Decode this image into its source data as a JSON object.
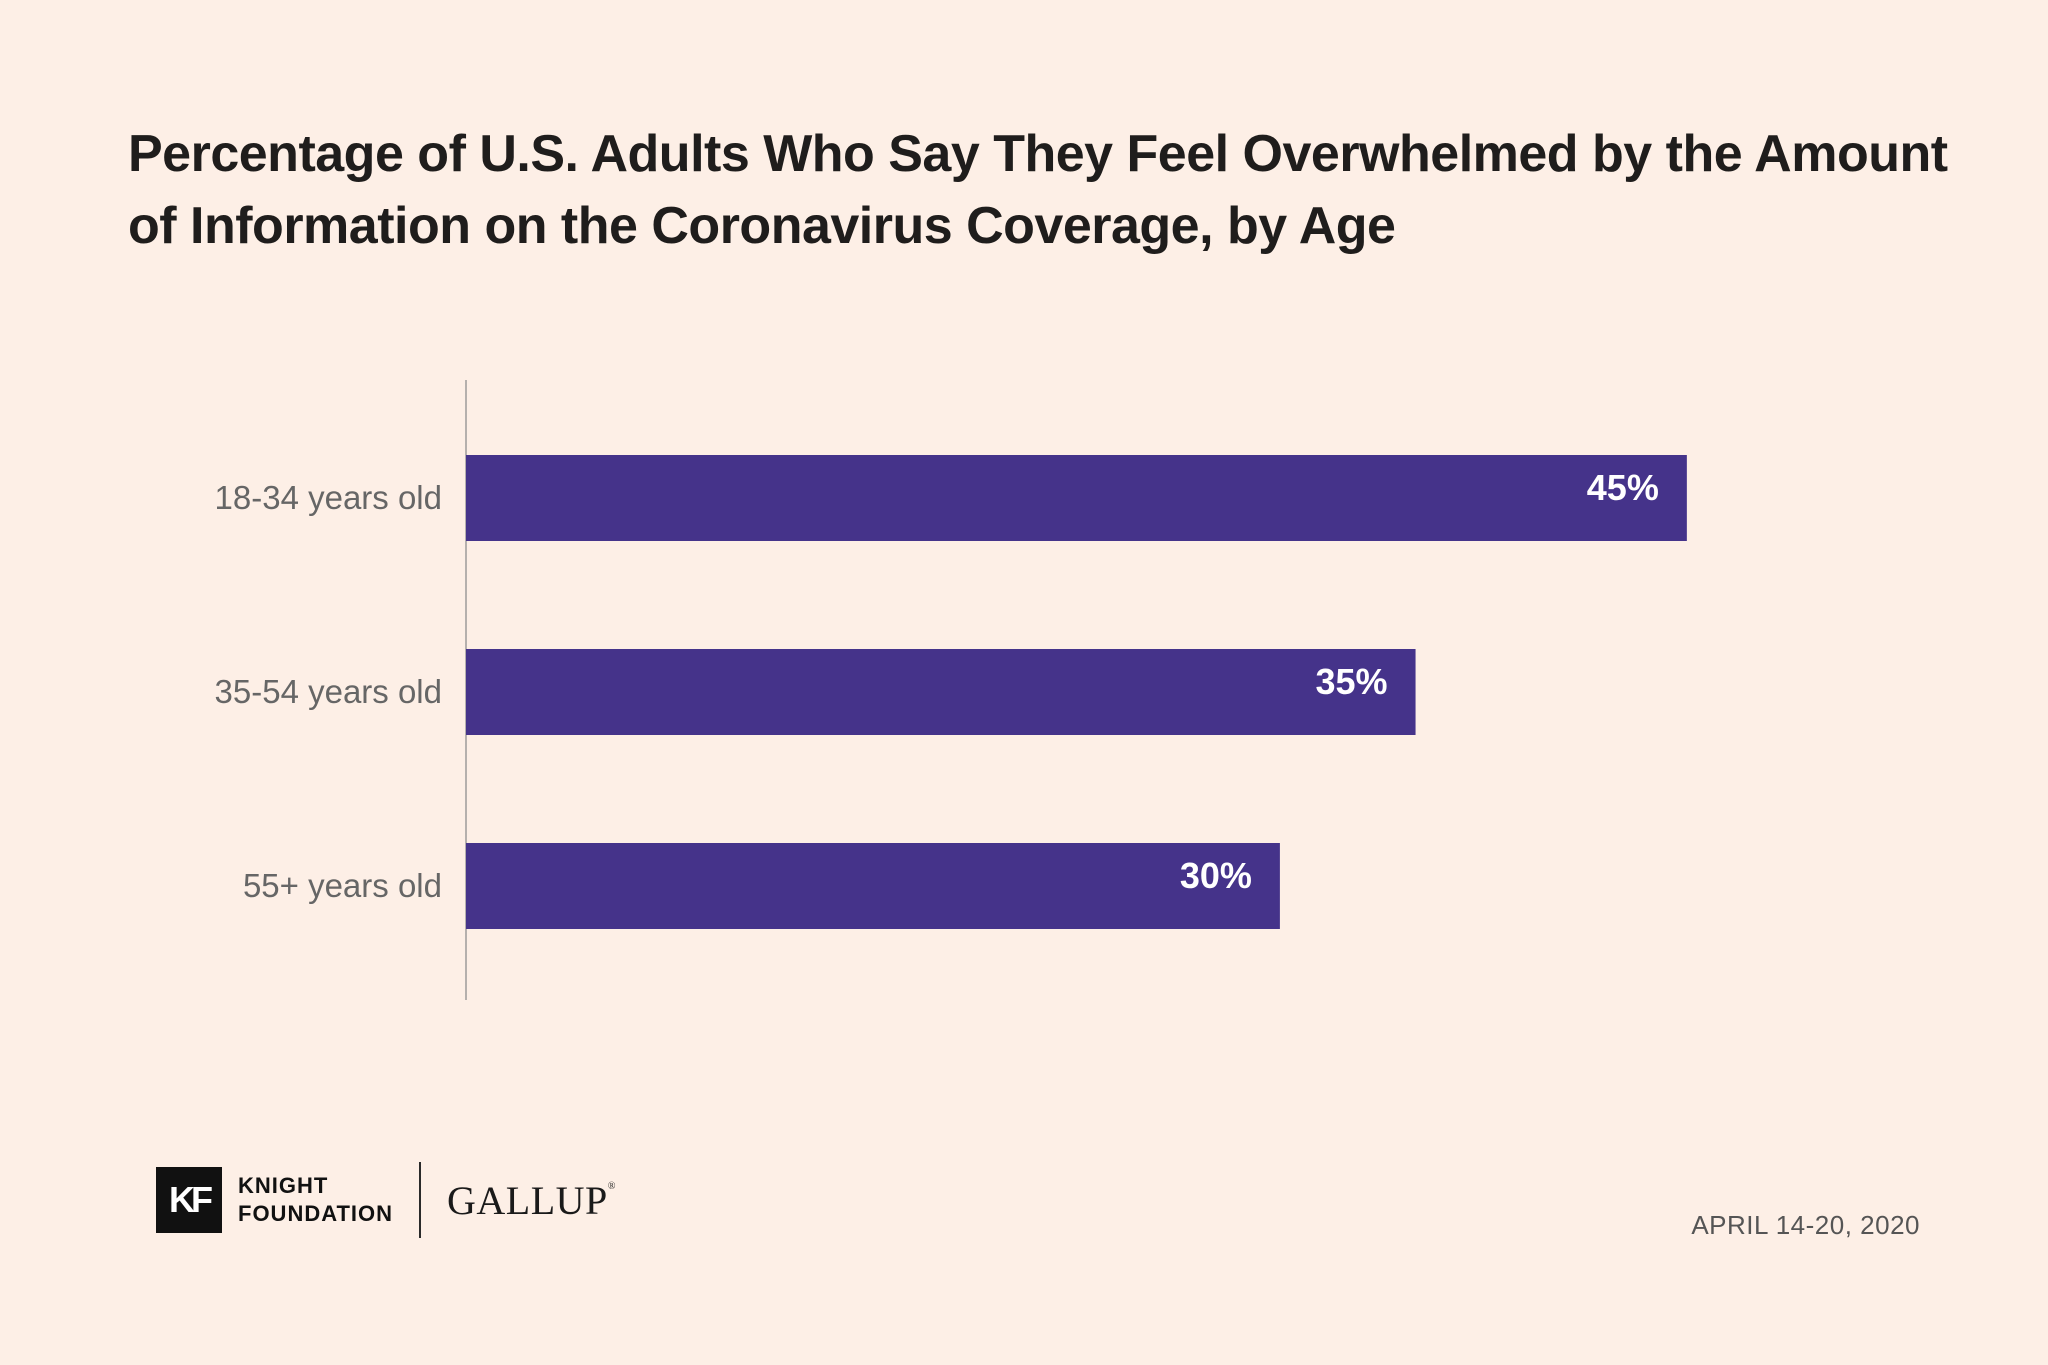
{
  "chart_data": {
    "type": "bar",
    "orientation": "horizontal",
    "title": "Percentage of U.S. Adults Who Say They Feel Overwhelmed by the Amount of Information on the Coronavirus Coverage, by Age",
    "categories": [
      "18-34 years old",
      "35-54 years old",
      "55+ years old"
    ],
    "values": [
      45,
      35,
      30
    ],
    "data_labels": [
      "45%",
      "35%",
      "30%"
    ],
    "xlim": [
      0,
      100
    ],
    "grid": false,
    "bar_color": "#45338a",
    "label_color": "#ffffff"
  },
  "footer": {
    "kf_mark": "KF",
    "kf_line1": "KNIGHT",
    "kf_line2": "FOUNDATION",
    "gallup": "GALLUP",
    "gallup_mark": "®",
    "date": "APRIL 14-20, 2020"
  },
  "colors": {
    "background": "#fdefe6",
    "title": "#1f1d1c",
    "category_label": "#666666",
    "axis_line": "#b5b0ad"
  }
}
